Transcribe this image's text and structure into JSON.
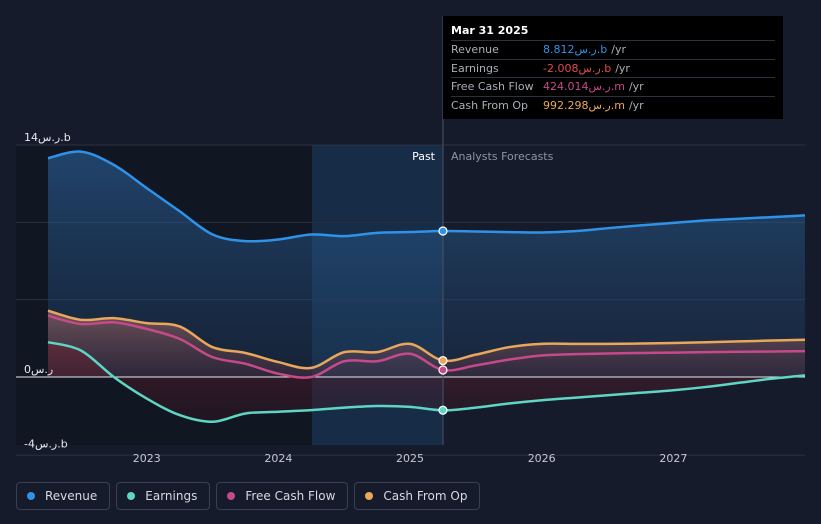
{
  "chart_data": {
    "type": "line",
    "title": "",
    "x_unit": "year",
    "x_ticks": [
      "2023",
      "2024",
      "2025",
      "2026",
      "2027"
    ],
    "x_range": [
      2022.25,
      2028.0
    ],
    "ylim": [
      -4,
      14
    ],
    "y_labels": [
      {
        "value": 14,
        "text": "14ر.س.b"
      },
      {
        "value": 0,
        "text": "0ر.س"
      },
      {
        "value": -4,
        "text": "-4ر.س.b"
      }
    ],
    "past_label": "Past",
    "forecast_label": "Analysts Forecasts",
    "forecast_start": 2025.25,
    "highlight_start": 2024.25,
    "series": [
      {
        "name": "Revenue",
        "color": "#2e93e8",
        "points": [
          [
            2022.25,
            13.2
          ],
          [
            2022.5,
            13.6
          ],
          [
            2022.75,
            12.8
          ],
          [
            2023.0,
            11.4
          ],
          [
            2023.25,
            10.0
          ],
          [
            2023.5,
            8.6
          ],
          [
            2023.75,
            8.2
          ],
          [
            2024.0,
            8.3
          ],
          [
            2024.25,
            8.6
          ],
          [
            2024.5,
            8.5
          ],
          [
            2024.75,
            8.7
          ],
          [
            2025.0,
            8.75
          ],
          [
            2025.25,
            8.812
          ],
          [
            2025.5,
            8.78
          ],
          [
            2025.75,
            8.74
          ],
          [
            2026.0,
            8.72
          ],
          [
            2026.25,
            8.8
          ],
          [
            2026.5,
            8.98
          ],
          [
            2026.75,
            9.15
          ],
          [
            2027.0,
            9.3
          ],
          [
            2027.25,
            9.45
          ],
          [
            2027.5,
            9.55
          ],
          [
            2027.75,
            9.65
          ],
          [
            2028.0,
            9.75
          ]
        ]
      },
      {
        "name": "Earnings",
        "color": "#5fd6c3",
        "points": [
          [
            2022.25,
            2.1
          ],
          [
            2022.5,
            1.6
          ],
          [
            2022.75,
            0.0
          ],
          [
            2023.0,
            -1.3
          ],
          [
            2023.25,
            -2.3
          ],
          [
            2023.5,
            -2.7
          ],
          [
            2023.75,
            -2.2
          ],
          [
            2024.0,
            -2.1
          ],
          [
            2024.25,
            -2.0
          ],
          [
            2024.5,
            -1.85
          ],
          [
            2024.75,
            -1.75
          ],
          [
            2025.0,
            -1.8
          ],
          [
            2025.25,
            -2.008
          ],
          [
            2025.5,
            -1.85
          ],
          [
            2025.75,
            -1.6
          ],
          [
            2026.0,
            -1.4
          ],
          [
            2026.25,
            -1.25
          ],
          [
            2026.5,
            -1.1
          ],
          [
            2026.75,
            -0.95
          ],
          [
            2027.0,
            -0.8
          ],
          [
            2027.25,
            -0.6
          ],
          [
            2027.5,
            -0.35
          ],
          [
            2027.75,
            -0.1
          ],
          [
            2028.0,
            0.1
          ]
        ]
      },
      {
        "name": "Free Cash Flow",
        "color": "#c64a8a",
        "points": [
          [
            2022.25,
            3.7
          ],
          [
            2022.5,
            3.2
          ],
          [
            2022.75,
            3.3
          ],
          [
            2023.0,
            2.9
          ],
          [
            2023.25,
            2.3
          ],
          [
            2023.5,
            1.2
          ],
          [
            2023.75,
            0.8
          ],
          [
            2024.0,
            0.2
          ],
          [
            2024.25,
            0.0
          ],
          [
            2024.5,
            0.95
          ],
          [
            2024.75,
            0.95
          ],
          [
            2025.0,
            1.4
          ],
          [
            2025.25,
            0.424
          ],
          [
            2025.5,
            0.7
          ],
          [
            2025.75,
            1.05
          ],
          [
            2026.0,
            1.3
          ],
          [
            2026.25,
            1.38
          ],
          [
            2026.5,
            1.42
          ],
          [
            2026.75,
            1.45
          ],
          [
            2027.0,
            1.47
          ],
          [
            2027.25,
            1.5
          ],
          [
            2027.5,
            1.52
          ],
          [
            2027.75,
            1.54
          ],
          [
            2028.0,
            1.56
          ]
        ]
      },
      {
        "name": "Cash From Op",
        "color": "#e8a75b",
        "points": [
          [
            2022.25,
            4.0
          ],
          [
            2022.5,
            3.45
          ],
          [
            2022.75,
            3.55
          ],
          [
            2023.0,
            3.25
          ],
          [
            2023.25,
            3.05
          ],
          [
            2023.5,
            1.8
          ],
          [
            2023.75,
            1.45
          ],
          [
            2024.0,
            0.9
          ],
          [
            2024.25,
            0.55
          ],
          [
            2024.5,
            1.5
          ],
          [
            2024.75,
            1.5
          ],
          [
            2025.0,
            2.0
          ],
          [
            2025.25,
            0.992
          ],
          [
            2025.5,
            1.35
          ],
          [
            2025.75,
            1.8
          ],
          [
            2026.0,
            2.0
          ],
          [
            2026.25,
            2.0
          ],
          [
            2026.5,
            2.0
          ],
          [
            2026.75,
            2.02
          ],
          [
            2027.0,
            2.05
          ],
          [
            2027.25,
            2.1
          ],
          [
            2027.5,
            2.15
          ],
          [
            2027.75,
            2.2
          ],
          [
            2028.0,
            2.25
          ]
        ]
      }
    ]
  },
  "tooltip": {
    "date": "Mar 31 2025",
    "rows": [
      {
        "label": "Revenue",
        "value": "8.812ر.س.b",
        "unit": "/yr",
        "color": "#2e93e8"
      },
      {
        "label": "Earnings",
        "value": "-2.008ر.س.b",
        "unit": "/yr",
        "color": "#e04c4c"
      },
      {
        "label": "Free Cash Flow",
        "value": "424.014ر.س.m",
        "unit": "/yr",
        "color": "#c64a8a"
      },
      {
        "label": "Cash From Op",
        "value": "992.298ر.س.m",
        "unit": "/yr",
        "color": "#e8a75b"
      }
    ]
  },
  "legend": [
    {
      "label": "Revenue",
      "color": "#2e93e8"
    },
    {
      "label": "Earnings",
      "color": "#5fd6c3"
    },
    {
      "label": "Free Cash Flow",
      "color": "#c64a8a"
    },
    {
      "label": "Cash From Op",
      "color": "#e8a75b"
    }
  ]
}
